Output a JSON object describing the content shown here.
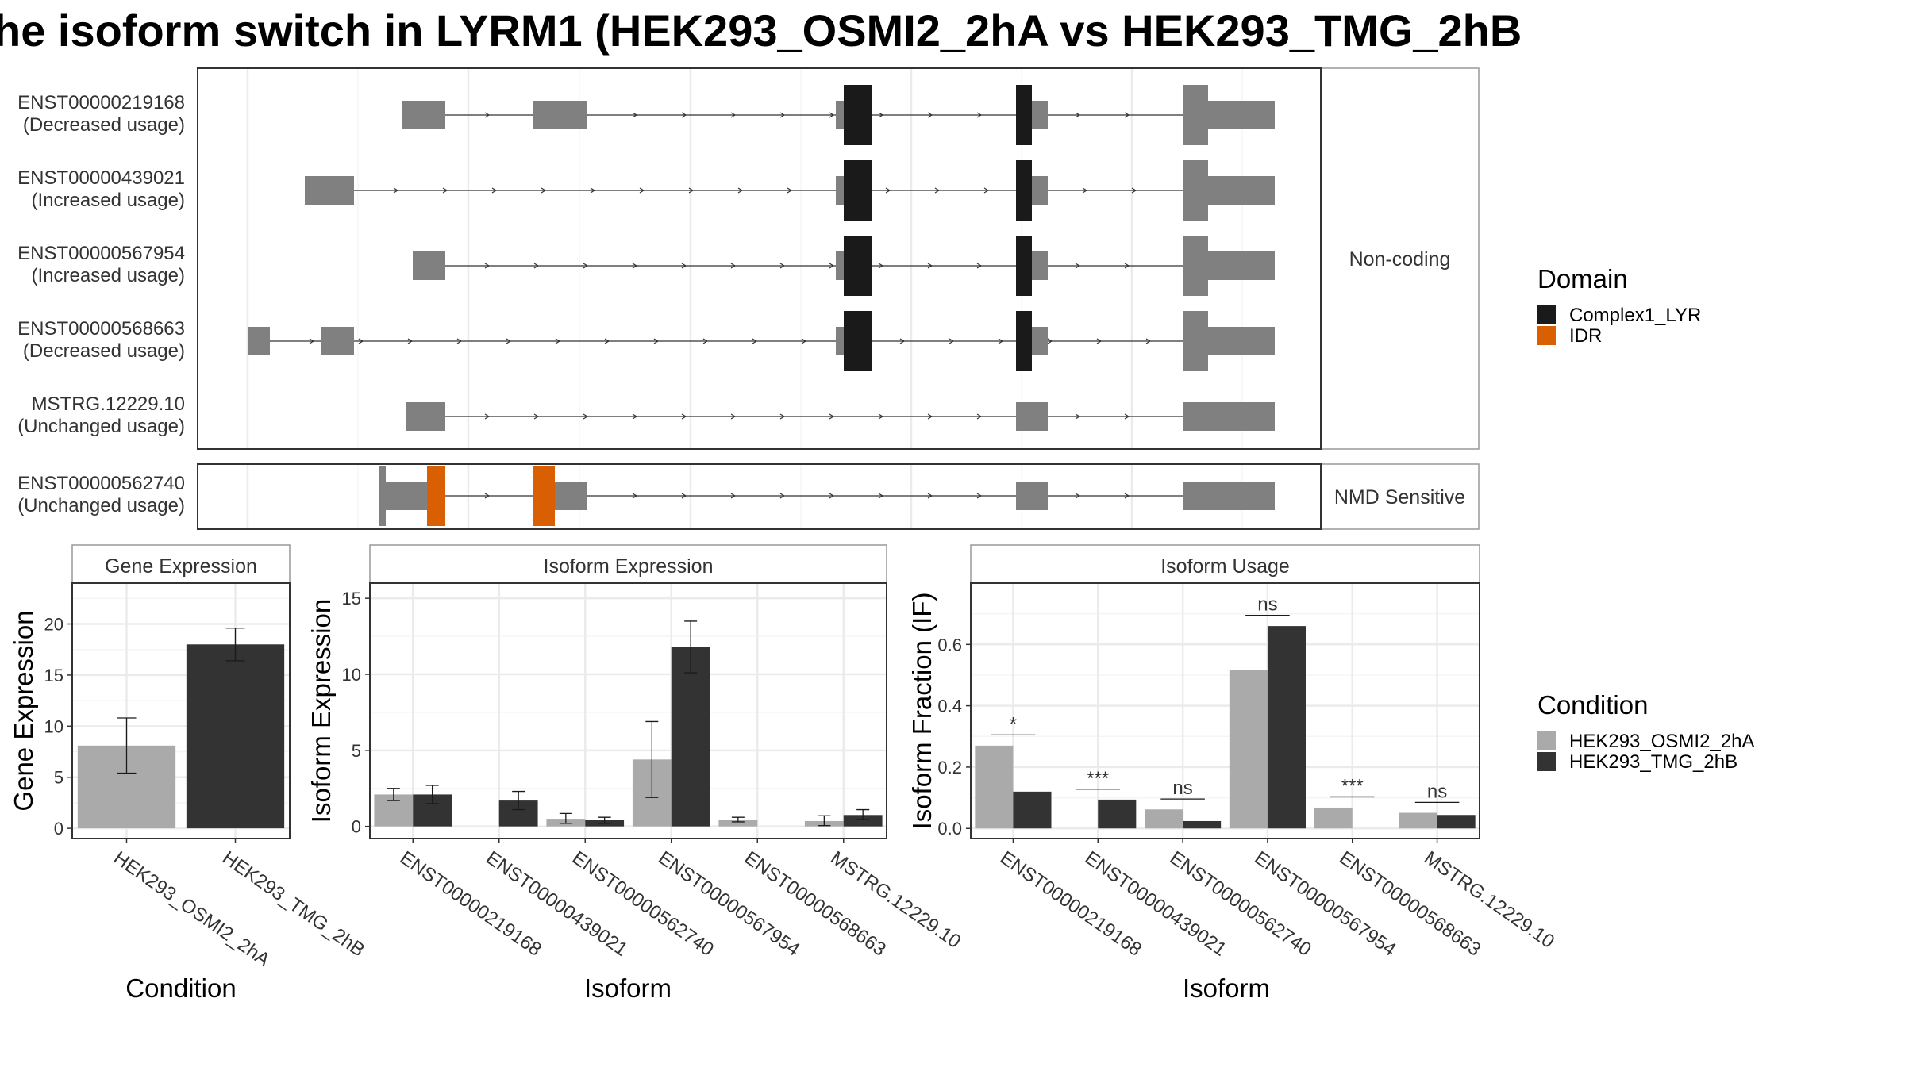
{
  "title": "he isoform switch in LYRM1 (HEK293_OSMI2_2hA vs HEK293_TMG_2hB",
  "colors": {
    "exon": "#808080",
    "complex1_lyr": "#1a1a1a",
    "idr": "#d95f02",
    "cond_a": "#aaaaaa",
    "cond_b": "#333333",
    "grid": "#ebebeb",
    "panel_border": "#333333",
    "strip_bg": "#ffffff",
    "strip_border": "#999999"
  },
  "transcript_panel": {
    "groups": [
      {
        "label": "Non-coding",
        "transcripts": [
          {
            "id": "ENST00000219168",
            "usage": "(Decreased usage)"
          },
          {
            "id": "ENST00000439021",
            "usage": "(Increased usage)"
          },
          {
            "id": "ENST00000567954",
            "usage": "(Increased usage)"
          },
          {
            "id": "ENST00000568663",
            "usage": "(Decreased usage)"
          },
          {
            "id": "MSTRG.12229.10",
            "usage": "(Unchanged usage)"
          }
        ]
      },
      {
        "label": "NMD Sensitive",
        "transcripts": [
          {
            "id": "ENST00000562740",
            "usage": "(Unchanged usage)"
          }
        ]
      }
    ]
  },
  "legends": {
    "domain": {
      "title": "Domain",
      "items": [
        {
          "label": "Complex1_LYR",
          "color": "#1a1a1a"
        },
        {
          "label": "IDR",
          "color": "#d95f02"
        }
      ]
    },
    "condition": {
      "title": "Condition",
      "items": [
        {
          "label": "HEK293_OSMI2_2hA",
          "color": "#aaaaaa"
        },
        {
          "label": "HEK293_TMG_2hB",
          "color": "#333333"
        }
      ]
    }
  },
  "chart_data": [
    {
      "type": "bar",
      "title": "Gene Expression",
      "xlabel": "Condition",
      "ylabel": "Gene Expression",
      "ylim": [
        -1,
        24
      ],
      "yticks": [
        0,
        5,
        10,
        15,
        20
      ],
      "categories": [
        "HEK293_OSMI2_2hA",
        "HEK293_TMG_2hB"
      ],
      "values": [
        8.1,
        18.0
      ],
      "error_low": [
        5.4,
        16.4
      ],
      "error_high": [
        10.8,
        19.6
      ]
    },
    {
      "type": "bar",
      "title": "Isoform Expression",
      "xlabel": "Isoform",
      "ylabel": "Isoform Expression",
      "ylim": [
        -0.8,
        16
      ],
      "yticks": [
        0,
        5,
        10,
        15
      ],
      "categories": [
        "ENST00000219168",
        "ENST00000439021",
        "ENST00000562740",
        "ENST00000567954",
        "ENST00000568663",
        "MSTRG.12229.10"
      ],
      "series": [
        {
          "name": "HEK293_OSMI2_2hA",
          "values": [
            2.1,
            0.0,
            0.5,
            4.4,
            0.45,
            0.35
          ],
          "error_low": [
            1.7,
            0.0,
            0.2,
            1.9,
            0.3,
            0.05
          ],
          "error_high": [
            2.5,
            0.0,
            0.85,
            6.9,
            0.6,
            0.7
          ]
        },
        {
          "name": "HEK293_TMG_2hB",
          "values": [
            2.1,
            1.7,
            0.4,
            11.8,
            0.0,
            0.75
          ],
          "error_low": [
            1.5,
            1.1,
            0.2,
            10.1,
            0.0,
            0.45
          ],
          "error_high": [
            2.7,
            2.3,
            0.6,
            13.5,
            0.0,
            1.1
          ]
        }
      ]
    },
    {
      "type": "bar",
      "title": "Isoform Usage",
      "xlabel": "Isoform",
      "ylabel": "Isoform Fraction (IF)",
      "ylim": [
        -0.033,
        0.8
      ],
      "yticks": [
        0.0,
        0.2,
        0.4,
        0.6
      ],
      "categories": [
        "ENST00000219168",
        "ENST00000439021",
        "ENST00000562740",
        "ENST00000567954",
        "ENST00000568663",
        "MSTRG.12229.10"
      ],
      "series": [
        {
          "name": "HEK293_OSMI2_2hA",
          "values": [
            0.27,
            0.0,
            0.062,
            0.518,
            0.068,
            0.051
          ]
        },
        {
          "name": "HEK293_TMG_2hB",
          "values": [
            0.12,
            0.094,
            0.024,
            0.66,
            0.0,
            0.044
          ]
        }
      ],
      "significance": [
        "*",
        "***",
        "ns",
        "ns",
        "***",
        "ns"
      ],
      "significance_y": [
        0.305,
        0.128,
        0.096,
        0.695,
        0.103,
        0.085
      ]
    }
  ]
}
